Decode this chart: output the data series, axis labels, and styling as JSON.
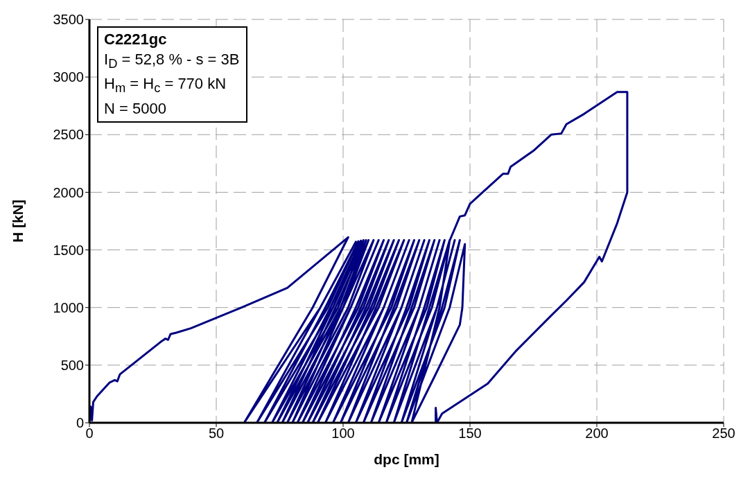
{
  "chart_data": {
    "type": "line",
    "xlabel": "dpc [mm]",
    "ylabel": "H [kN]",
    "annotations": [
      "C2221gc",
      "I$_{D}$ = 52,8 % - s = 3B",
      "H$_{m}$ = H$_{c}$ = 770 kN",
      "N = 5000"
    ],
    "xlim": [
      0,
      250
    ],
    "xticks": [
      0,
      50,
      100,
      150,
      200,
      250
    ],
    "ylim": [
      0,
      3500
    ],
    "yticks": [
      0,
      500,
      1000,
      1500,
      2000,
      2500,
      3000,
      3500
    ],
    "grid": true,
    "series": [
      {
        "color": "#000080",
        "x": [
          0,
          0.5,
          1,
          1.5,
          3,
          8,
          10,
          11,
          12,
          20,
          28,
          30,
          31,
          32,
          34,
          40,
          50,
          60,
          78,
          102,
          88,
          61,
          91,
          105,
          91,
          66,
          94,
          106,
          93,
          69,
          96,
          107,
          95,
          72,
          98,
          108,
          96,
          74,
          99,
          109,
          97,
          76,
          100,
          110,
          99,
          78,
          102,
          112,
          100,
          80,
          103,
          114,
          103,
          82,
          106,
          116,
          105,
          84,
          108,
          118,
          107,
          86,
          110,
          120,
          109,
          88,
          112,
          122,
          111,
          90,
          114,
          124,
          113,
          93,
          116,
          126,
          116,
          96,
          119,
          128,
          118,
          99,
          121,
          130,
          120,
          102,
          123,
          132,
          123,
          105,
          126,
          134,
          125,
          108,
          128,
          136,
          127,
          111,
          130,
          138,
          130,
          114,
          133,
          140,
          132,
          117,
          135,
          142,
          134,
          120,
          137,
          144,
          137,
          123,
          140,
          146,
          139,
          125,
          142,
          148,
          147,
          146,
          136,
          127,
          138,
          142,
          146,
          148,
          150,
          155,
          160,
          163,
          165,
          166,
          175,
          182,
          186,
          188,
          195,
          208,
          212,
          212,
          208,
          202,
          201,
          195,
          188,
          182,
          168,
          157,
          139,
          137,
          136.5,
          136.5
        ],
        "values": [
          0,
          140,
          20,
          180,
          230,
          350,
          370,
          360,
          420,
          560,
          700,
          730,
          720,
          770,
          780,
          820,
          910,
          1000,
          1170,
          1610,
          1000,
          0,
          1000,
          1570,
          1000,
          0,
          1000,
          1575,
          1000,
          0,
          1000,
          1580,
          1000,
          0,
          1000,
          1585,
          1000,
          0,
          1000,
          1585,
          1000,
          0,
          1000,
          1585,
          1000,
          0,
          1000,
          1585,
          1000,
          0,
          1000,
          1585,
          1000,
          0,
          1000,
          1585,
          1000,
          0,
          1000,
          1585,
          1000,
          0,
          1000,
          1585,
          1000,
          0,
          1000,
          1585,
          1000,
          0,
          1000,
          1585,
          1000,
          0,
          1000,
          1585,
          1000,
          0,
          1000,
          1585,
          1000,
          0,
          1000,
          1585,
          1000,
          0,
          1000,
          1585,
          1000,
          0,
          1000,
          1585,
          1000,
          0,
          1000,
          1585,
          1000,
          0,
          1000,
          1585,
          1000,
          0,
          1000,
          1585,
          1000,
          0,
          1000,
          1585,
          1000,
          0,
          1000,
          1585,
          1000,
          0,
          1000,
          1585,
          1000,
          0,
          1000,
          1550,
          1000,
          850,
          400,
          0,
          1000,
          1580,
          1790,
          1800,
          1900,
          2000,
          2100,
          2160,
          2160,
          2220,
          2360,
          2500,
          2510,
          2590,
          2680,
          2870,
          2870,
          2000,
          1730,
          1400,
          1440,
          1220,
          1060,
          930,
          620,
          340,
          80,
          0,
          130,
          0
        ]
      }
    ]
  }
}
